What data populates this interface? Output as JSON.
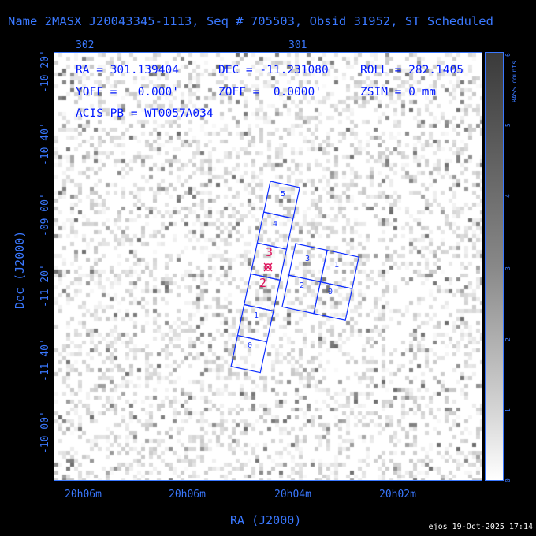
{
  "title": "Name 2MASX J20043345-1113, Seq # 705503, Obsid 31952, ST Scheduled",
  "top_ticks": [
    "302",
    "301"
  ],
  "info": {
    "ra": "RA = 301.139404",
    "dec": "DEC = -11.231080",
    "roll": "ROLL = 282.1405",
    "yoff": "YOFF =   0.000'",
    "zoff": "ZOFF =  0.0000'",
    "zsim": "ZSIM = 0 mm",
    "acis_pb": "ACIS PB = WT0057A034"
  },
  "y_ticks": [
    "-10 20'",
    "-10 40'",
    "-09 00'",
    "-11 20'",
    "-11 40'",
    "-10 00'"
  ],
  "x_ticks": [
    "20h06m",
    "20h06m",
    "20h04m",
    "20h02m"
  ],
  "x_axis_label": "RA (J2000)",
  "y_axis_label": "Dec (J2000)",
  "colorbar": {
    "label": "RASS counts",
    "ticks": [
      "0",
      "1",
      "2",
      "3",
      "4",
      "5",
      "6"
    ]
  },
  "chips_left": [
    "5",
    "4",
    "3",
    "2",
    "1",
    "0"
  ],
  "chips_right": [
    "3",
    "1",
    "2",
    "0"
  ],
  "markers": [
    "3",
    "2"
  ],
  "footer": "ejos 19-Oct-2025 17:14",
  "colors": {
    "axis": "#3a78ff",
    "text": "#0018ff",
    "chip": "#1030ff",
    "marker": "#e0105a"
  }
}
